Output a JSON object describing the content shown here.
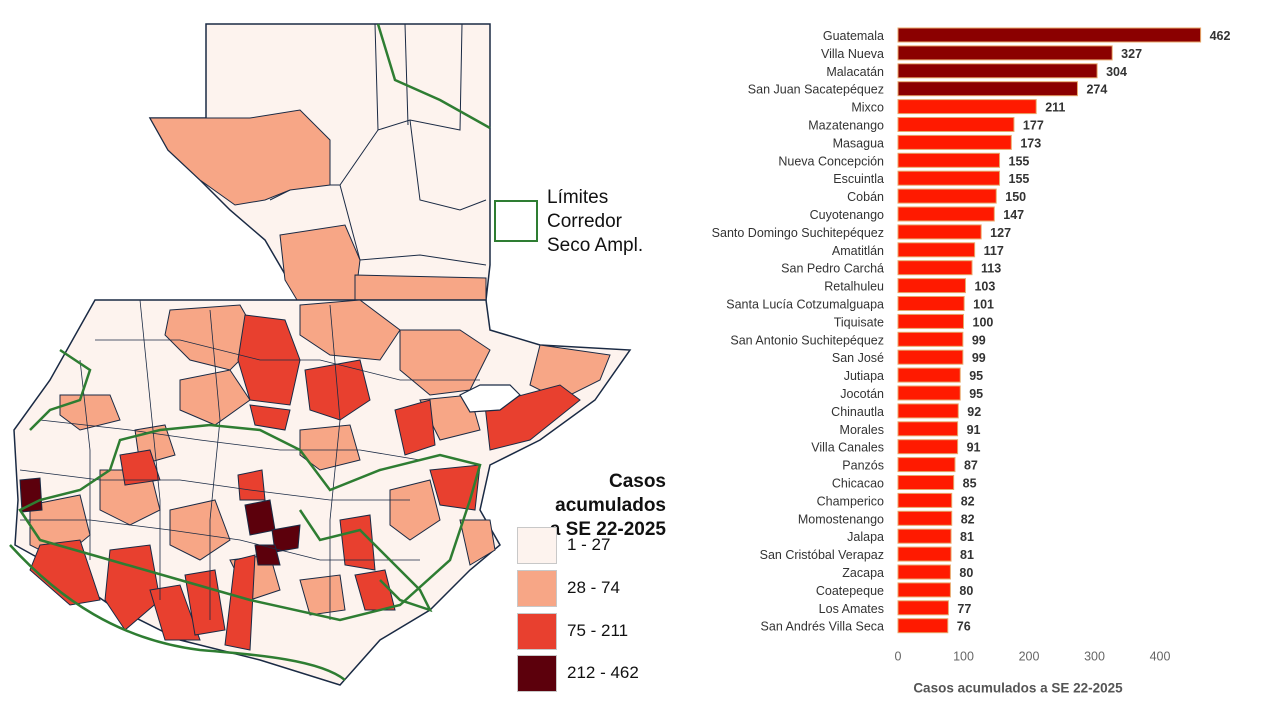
{
  "map": {
    "corridor_label": [
      "Límites",
      "Corredor",
      "Seco Ampl."
    ],
    "cases_legend_title": [
      "Casos acumulados",
      "a SE 22-2025"
    ],
    "legend_bins": [
      {
        "label": "1 - 27",
        "color": "#fdf3ee"
      },
      {
        "label": "28 - 74",
        "color": "#f7a686"
      },
      {
        "label": "75 - 211",
        "color": "#e8402f"
      },
      {
        "label": "212 - 462",
        "color": "#5c000c"
      }
    ],
    "corridor_color": "#2e7d32"
  },
  "chart_data": {
    "type": "bar",
    "orientation": "horizontal",
    "categories": [
      "Guatemala",
      "Villa Nueva",
      "Malacatán",
      "San Juan Sacatepéquez",
      "Mixco",
      "Mazatenango",
      "Masagua",
      "Nueva Concepción",
      "Escuintla",
      "Cobán",
      "Cuyotenango",
      "Santo Domingo Suchitepéquez",
      "Amatitlán",
      "San Pedro Carchá",
      "Retalhuleu",
      "Santa Lucía Cotzumalguapa",
      "Tiquisate",
      "San Antonio Suchitepéquez",
      "San José",
      "Jutiapa",
      "Jocotán",
      "Chinautla",
      "Morales",
      "Villa Canales",
      "Panzós",
      "Chicacao",
      "Champerico",
      "Momostenango",
      "Jalapa",
      "San Cristóbal Verapaz",
      "Zacapa",
      "Coatepeque",
      "Los Amates",
      "San Andrés Villa Seca"
    ],
    "values": [
      462,
      327,
      304,
      274,
      211,
      177,
      173,
      155,
      155,
      150,
      147,
      127,
      117,
      113,
      103,
      101,
      100,
      99,
      99,
      95,
      95,
      92,
      91,
      91,
      87,
      85,
      82,
      82,
      81,
      81,
      80,
      80,
      77,
      76
    ],
    "xlabel": "Casos acumulados a SE 22-2025",
    "ylabel": "",
    "xlim": [
      0,
      470
    ],
    "xticks": [
      0,
      100,
      200,
      300,
      400
    ],
    "grid": false,
    "colors": {
      "high": "#8b0000",
      "normal": "#ff1a00",
      "outline": "#e8a86b"
    },
    "high_threshold": 212
  }
}
